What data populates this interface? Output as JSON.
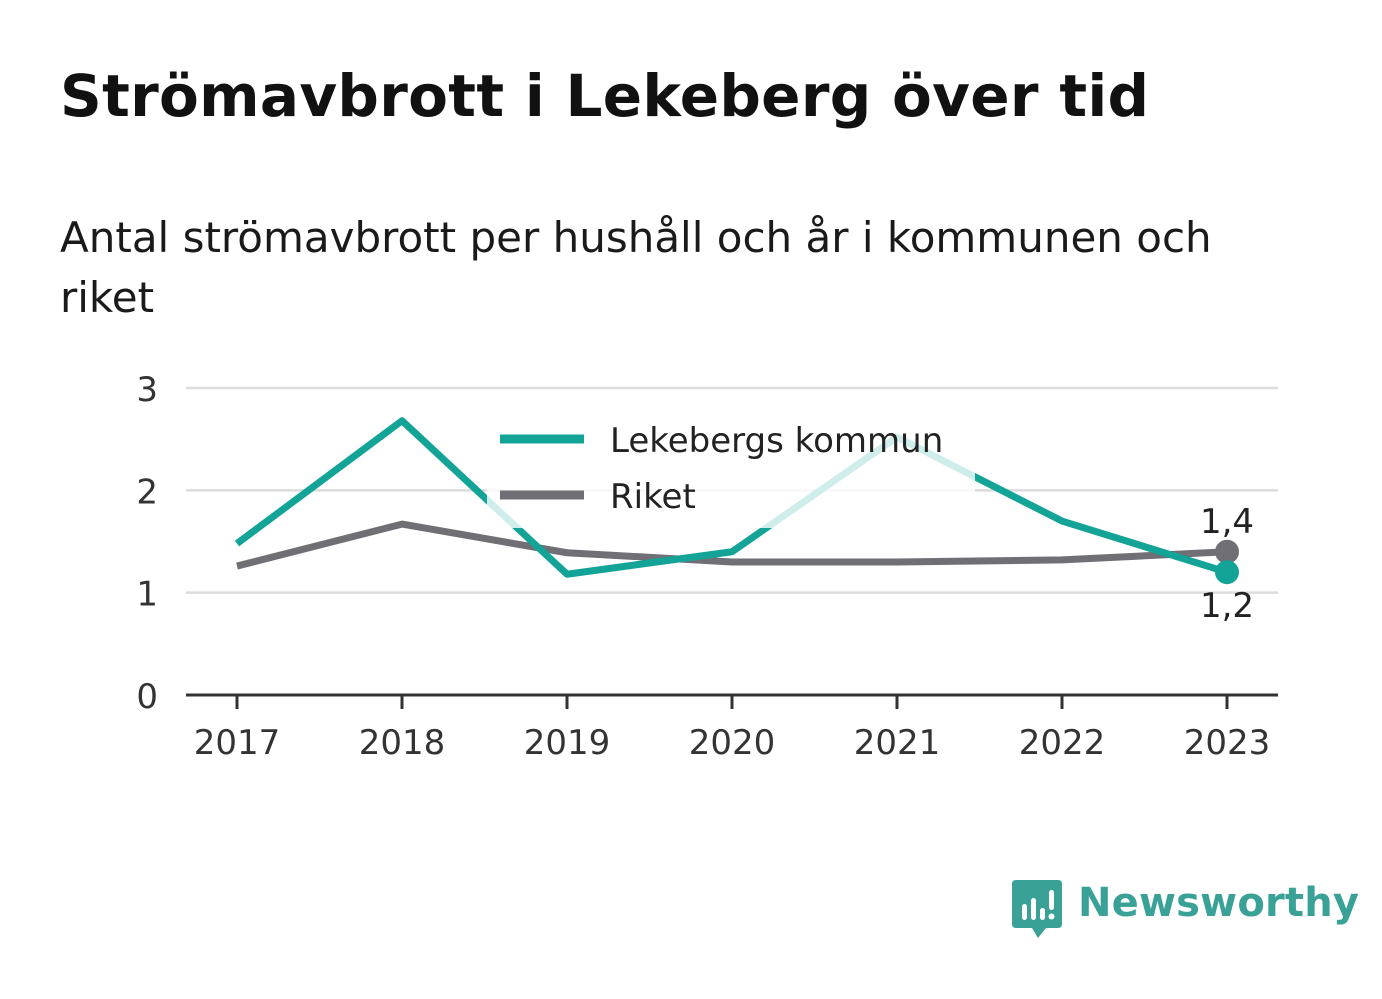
{
  "title": "Strömavbrott i Lekeberg över tid",
  "subtitle": "Antal strömavbrott per hushåll och år i kommunen och riket",
  "brand": {
    "name": "Newsworthy",
    "color": "#3aa197",
    "icon": "newsworthy-bar-chart-logo-icon"
  },
  "colors": {
    "kommun": "#13a397",
    "riket": "#6f6f75",
    "grid": "#dcdcdc",
    "axis": "#333333"
  },
  "chart_data": {
    "type": "line",
    "x": [
      "2017",
      "2018",
      "2019",
      "2020",
      "2021",
      "2022",
      "2023"
    ],
    "ylim": [
      0,
      3
    ],
    "yticks": [
      "0",
      "1",
      "2",
      "3"
    ],
    "grid": true,
    "legend_position": "top-center",
    "series": [
      {
        "name": "Lekebergs kommun",
        "color": "#13a397",
        "values": [
          1.48,
          2.68,
          1.18,
          1.4,
          2.52,
          1.7,
          1.2
        ],
        "end_label": "1,2"
      },
      {
        "name": "Riket",
        "color": "#6f6f75",
        "values": [
          1.26,
          1.67,
          1.39,
          1.3,
          1.3,
          1.32,
          1.4
        ],
        "end_label": "1,4"
      }
    ]
  }
}
